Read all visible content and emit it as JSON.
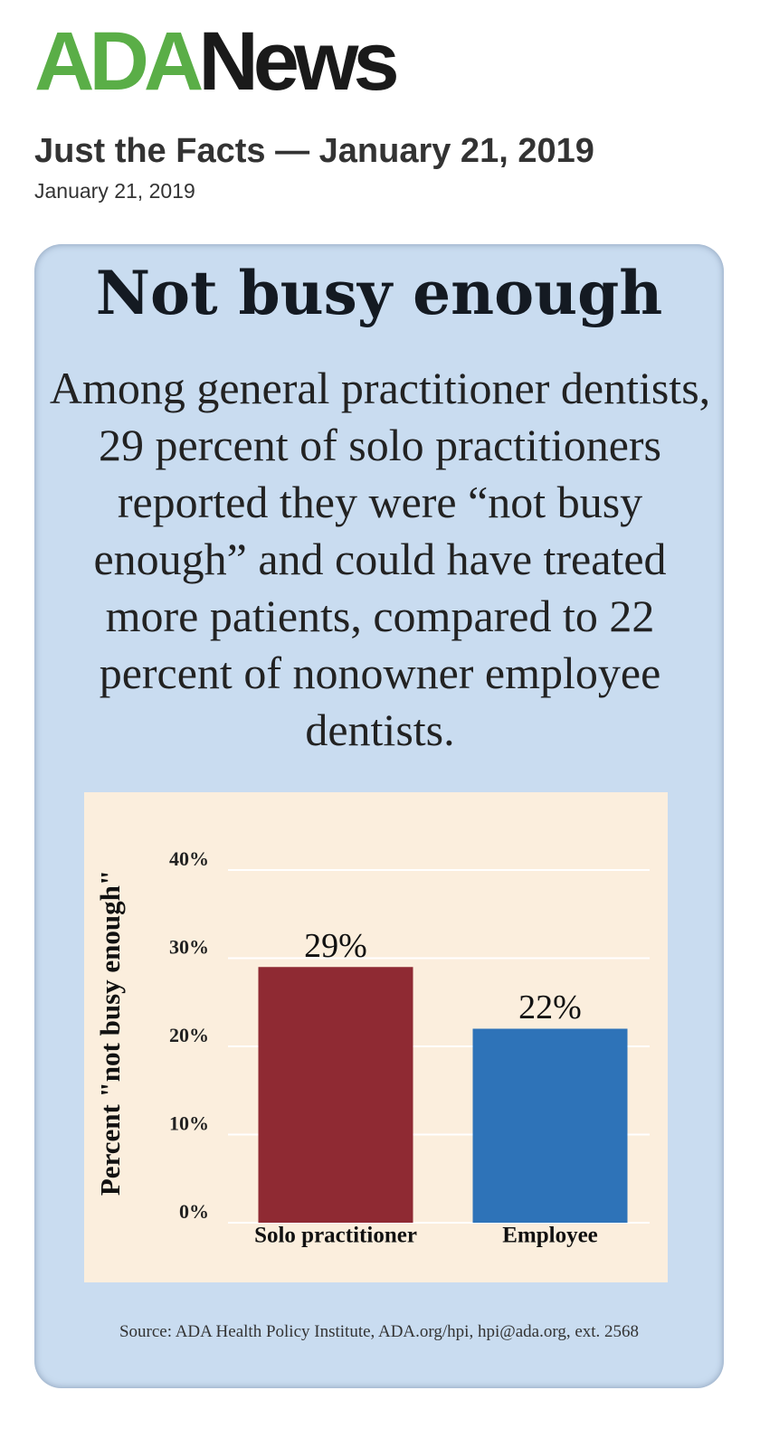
{
  "header": {
    "logo_ada": "ADA",
    "logo_news": "News",
    "title": "Just the Facts — January 21, 2019",
    "date": "January 21, 2019"
  },
  "chart_data": {
    "type": "bar",
    "title": "Not busy enough",
    "subtitle": "Among general practitioner dentists, 29 percent of solo practitioners reported they were “not busy enough” and could have treated more patients, compared to  22 percent of nonowner employee dentists.",
    "ylabel": "Percent \"not busy enough\"",
    "categories": [
      "Solo practitioner",
      "Employee"
    ],
    "values": [
      29,
      22
    ],
    "value_labels": [
      "29%",
      "22%"
    ],
    "colors": [
      "#8f2a33",
      "#2e73b8"
    ],
    "ylim": [
      0,
      40
    ],
    "yticks": [
      {
        "value": 0,
        "label": "0%"
      },
      {
        "value": 10,
        "label": "10%"
      },
      {
        "value": 20,
        "label": "20%"
      },
      {
        "value": 30,
        "label": "30%"
      },
      {
        "value": 40,
        "label": "40%"
      }
    ],
    "grid": true,
    "source": "Source: ADA Health Policy Institute, ADA.org/hpi, hpi@ada.org, ext. 2568"
  }
}
